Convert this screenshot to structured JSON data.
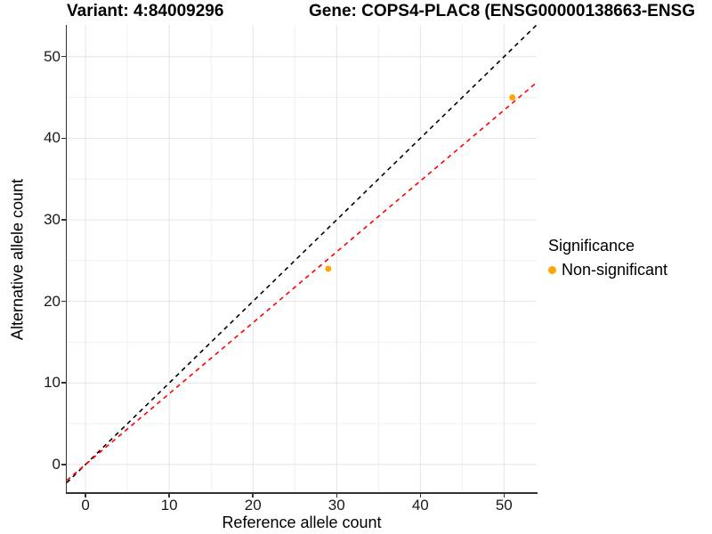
{
  "chart_data": {
    "type": "scatter",
    "title_left": "Variant: 4:84009296",
    "title_right": "Gene: COPS4-PLAC8 (ENSG00000138663-ENSG",
    "xlabel": "Reference allele count",
    "ylabel": "Alternative allele count",
    "x_ticks": [
      0,
      10,
      20,
      30,
      40,
      50
    ],
    "y_ticks": [
      0,
      10,
      20,
      30,
      40,
      50
    ],
    "xlim": [
      -2.25,
      53.9
    ],
    "ylim": [
      -3.4,
      53.9
    ],
    "grid": {
      "major_color": "#e4e4e4",
      "minor_color": "#f1f1f1"
    },
    "points": [
      {
        "x": 29,
        "y": 24
      },
      {
        "x": 51,
        "y": 45
      }
    ],
    "point_color": "#FFA500",
    "lines": [
      {
        "name": "identity-line",
        "slope": 1.0,
        "intercept": 0,
        "color": "#000000",
        "style": "dashed"
      },
      {
        "name": "fit-line",
        "slope": 0.869,
        "intercept": 0,
        "color": "#FF0000",
        "style": "dashed"
      }
    ],
    "legend": {
      "title": "Significance",
      "items": [
        {
          "label": "Non-significant",
          "color": "#FFA500"
        }
      ]
    }
  }
}
